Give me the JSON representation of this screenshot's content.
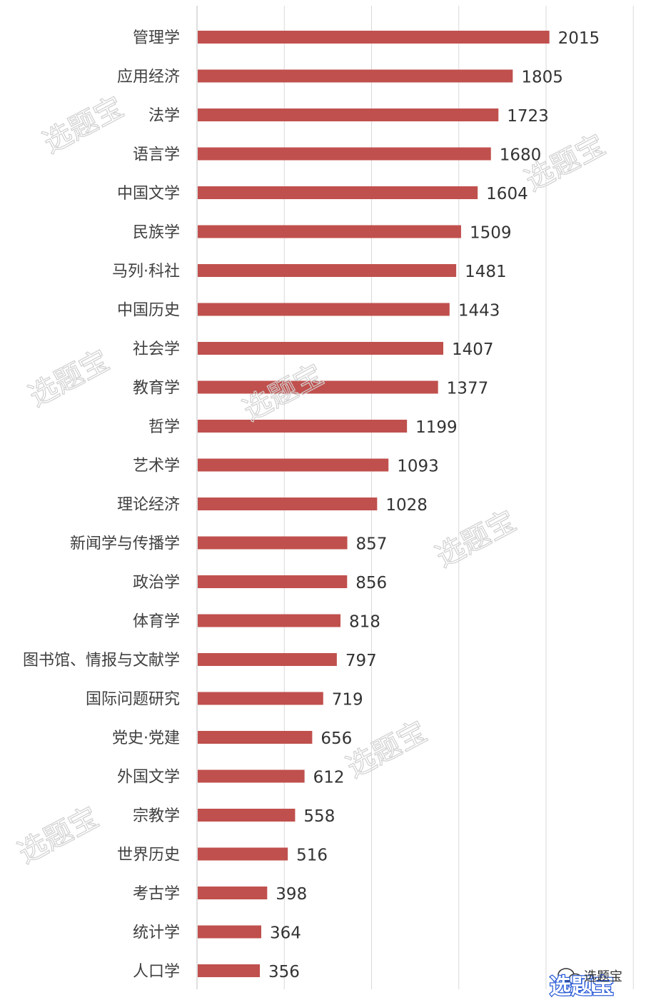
{
  "chart_data": {
    "type": "bar",
    "orientation": "horizontal",
    "categories": [
      "管理学",
      "应用经济",
      "法学",
      "语言学",
      "中国文学",
      "民族学",
      "马列·科社",
      "中国历史",
      "社会学",
      "教育学",
      "哲学",
      "艺术学",
      "理论经济",
      "新闻学与传播学",
      "政治学",
      "体育学",
      "图书馆、情报与文献学",
      "国际问题研究",
      "党史·党建",
      "外国文学",
      "宗教学",
      "世界历史",
      "考古学",
      "统计学",
      "人口学"
    ],
    "values": [
      2015,
      1805,
      1723,
      1680,
      1604,
      1509,
      1481,
      1443,
      1407,
      1377,
      1199,
      1093,
      1028,
      857,
      856,
      818,
      797,
      719,
      656,
      612,
      558,
      516,
      398,
      364,
      356
    ],
    "xlim": [
      0,
      2500
    ],
    "xtick_step": 500,
    "grid": true,
    "legend": "none",
    "data_labels": true,
    "bar_color": "#c0504d"
  },
  "watermark": {
    "text": "选题宝"
  },
  "logo": {
    "text": "选题宝",
    "icon": "wechat-icon"
  }
}
